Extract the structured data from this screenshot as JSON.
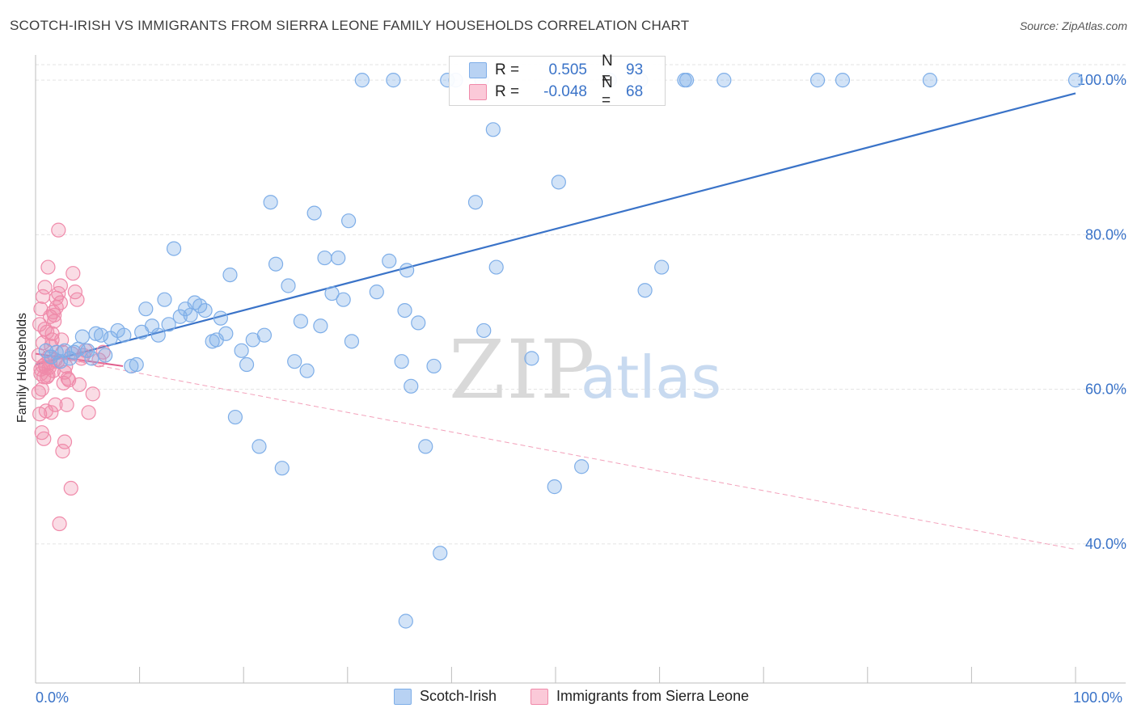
{
  "header": {
    "title": "SCOTCH-IRISH VS IMMIGRANTS FROM SIERRA LEONE FAMILY HOUSEHOLDS CORRELATION CHART",
    "source": "Source: ZipAtlas.com"
  },
  "watermark": {
    "zip": "ZIP",
    "atlas": "atlas"
  },
  "legend_top": {
    "rows": [
      {
        "r_label": "R =",
        "r_value": "0.505",
        "n_label": "N =",
        "n_value": "93",
        "color": "#7eaee8",
        "fill": "#b8d2f3"
      },
      {
        "r_label": "R =",
        "r_value": "-0.048",
        "n_label": "N =",
        "n_value": "68",
        "color": "#f08aaa",
        "fill": "#fbc9d8"
      }
    ]
  },
  "legend_bottom": {
    "items": [
      {
        "label": "Scotch-Irish",
        "color": "#7eaee8",
        "fill": "#b8d2f3"
      },
      {
        "label": "Immigrants from Sierra Leone",
        "color": "#f08aaa",
        "fill": "#fbc9d8"
      }
    ]
  },
  "x_axis": {
    "min_label": "0.0%",
    "max_label": "100.0%"
  },
  "chart_data": {
    "type": "scatter",
    "title": "SCOTCH-IRISH VS IMMIGRANTS FROM SIERRA LEONE FAMILY HOUSEHOLDS CORRELATION CHART",
    "xlabel": "",
    "ylabel": "Family Households",
    "xlim": [
      0,
      100
    ],
    "ylim": [
      22,
      102
    ],
    "y_ticks": [
      40,
      60,
      80,
      100
    ],
    "y_tick_labels": [
      "40.0%",
      "60.0%",
      "80.0%",
      "100.0%"
    ],
    "x_tick_values": [
      0,
      10,
      20,
      30,
      40,
      50,
      60,
      70,
      80,
      90,
      100
    ],
    "x_tick_labels": [
      "0.0%",
      "100.0%"
    ],
    "grid": true,
    "legend": "bottom-center",
    "series": [
      {
        "name": "Scotch-Irish",
        "color": "#3a73c8",
        "marker_fill": "rgba(126,174,232,0.35)",
        "marker_stroke": "#7eaee8",
        "trend": {
          "x": [
            0,
            100
          ],
          "y": [
            63.2,
            98.3
          ],
          "style": "solid"
        },
        "points": [
          [
            1.0,
            65.0
          ],
          [
            1.5,
            64.2
          ],
          [
            2.0,
            64.8
          ],
          [
            2.4,
            63.6
          ],
          [
            2.8,
            65.0
          ],
          [
            3.3,
            64.0
          ],
          [
            3.7,
            64.8
          ],
          [
            4.1,
            65.2
          ],
          [
            4.5,
            66.8
          ],
          [
            5.0,
            65.0
          ],
          [
            5.4,
            64.0
          ],
          [
            5.8,
            67.2
          ],
          [
            6.3,
            67.0
          ],
          [
            6.7,
            64.4
          ],
          [
            7.2,
            66.6
          ],
          [
            7.9,
            67.6
          ],
          [
            8.5,
            67.0
          ],
          [
            9.2,
            63.0
          ],
          [
            9.7,
            63.2
          ],
          [
            10.2,
            67.4
          ],
          [
            10.6,
            70.4
          ],
          [
            11.2,
            68.2
          ],
          [
            11.8,
            67.0
          ],
          [
            12.4,
            71.6
          ],
          [
            12.8,
            68.4
          ],
          [
            13.3,
            78.2
          ],
          [
            13.9,
            69.4
          ],
          [
            14.4,
            70.4
          ],
          [
            14.9,
            69.6
          ],
          [
            15.3,
            71.2
          ],
          [
            15.8,
            70.8
          ],
          [
            16.3,
            70.2
          ],
          [
            17.0,
            66.2
          ],
          [
            17.4,
            66.4
          ],
          [
            17.8,
            69.2
          ],
          [
            18.3,
            67.2
          ],
          [
            18.7,
            74.8
          ],
          [
            19.2,
            56.4
          ],
          [
            19.8,
            65.0
          ],
          [
            20.3,
            63.2
          ],
          [
            20.9,
            66.4
          ],
          [
            21.5,
            52.6
          ],
          [
            22.0,
            67.0
          ],
          [
            22.6,
            84.2
          ],
          [
            23.1,
            76.2
          ],
          [
            23.7,
            49.8
          ],
          [
            24.3,
            73.4
          ],
          [
            24.9,
            63.6
          ],
          [
            25.5,
            68.8
          ],
          [
            26.1,
            62.4
          ],
          [
            26.8,
            82.8
          ],
          [
            27.4,
            68.2
          ],
          [
            27.8,
            77.0
          ],
          [
            28.5,
            72.4
          ],
          [
            29.1,
            77.0
          ],
          [
            29.6,
            71.6
          ],
          [
            30.1,
            81.8
          ],
          [
            30.4,
            66.2
          ],
          [
            31.4,
            100
          ],
          [
            34.4,
            100
          ],
          [
            32.8,
            72.6
          ],
          [
            34.0,
            76.6
          ],
          [
            35.2,
            63.6
          ],
          [
            35.7,
            75.4
          ],
          [
            35.5,
            70.2
          ],
          [
            36.1,
            60.4
          ],
          [
            36.8,
            68.6
          ],
          [
            37.5,
            52.6
          ],
          [
            38.3,
            63.0
          ],
          [
            38.9,
            38.8
          ],
          [
            39.6,
            100
          ],
          [
            40.4,
            100
          ],
          [
            42.9,
            100
          ],
          [
            42.3,
            84.2
          ],
          [
            43.1,
            67.6
          ],
          [
            44.0,
            93.6
          ],
          [
            44.3,
            75.8
          ],
          [
            47.7,
            64.0
          ],
          [
            49.9,
            47.4
          ],
          [
            50.3,
            86.8
          ],
          [
            52.5,
            50.0
          ],
          [
            55.2,
            100
          ],
          [
            58.2,
            100
          ],
          [
            58.6,
            72.8
          ],
          [
            60.2,
            75.8
          ],
          [
            62.4,
            100
          ],
          [
            62.6,
            100
          ],
          [
            66.2,
            100
          ],
          [
            75.2,
            100
          ],
          [
            77.6,
            100
          ],
          [
            86.0,
            100
          ],
          [
            100,
            100
          ],
          [
            35.6,
            30.0
          ]
        ]
      },
      {
        "name": "Immigrants from Sierra Leone",
        "color": "#e05a8a",
        "marker_fill": "rgba(240,138,170,0.30)",
        "marker_stroke": "#f08aaa",
        "trend": {
          "x": [
            0,
            8.4
          ],
          "y": [
            64.6,
            63.0
          ],
          "style": "solid",
          "extended": {
            "x": [
              0,
              100
            ],
            "y": [
              64.6,
              39.3
            ],
            "style": "dashed"
          }
        },
        "points": [
          [
            0.3,
            64.4
          ],
          [
            0.5,
            62.6
          ],
          [
            0.7,
            66.0
          ],
          [
            0.9,
            63.2
          ],
          [
            1.1,
            67.4
          ],
          [
            0.4,
            68.4
          ],
          [
            0.6,
            60.0
          ],
          [
            0.8,
            61.6
          ],
          [
            1.0,
            62.8
          ],
          [
            1.3,
            64.2
          ],
          [
            1.5,
            65.6
          ],
          [
            1.7,
            62.4
          ],
          [
            1.9,
            63.8
          ],
          [
            0.5,
            70.4
          ],
          [
            0.7,
            72.0
          ],
          [
            0.9,
            73.2
          ],
          [
            1.2,
            75.8
          ],
          [
            1.4,
            69.4
          ],
          [
            1.6,
            66.4
          ],
          [
            1.8,
            68.8
          ],
          [
            2.0,
            70.6
          ],
          [
            2.2,
            72.4
          ],
          [
            2.4,
            71.2
          ],
          [
            2.6,
            64.8
          ],
          [
            2.8,
            62.2
          ],
          [
            0.4,
            56.8
          ],
          [
            0.6,
            54.4
          ],
          [
            0.8,
            53.6
          ],
          [
            1.0,
            57.2
          ],
          [
            1.2,
            61.8
          ],
          [
            1.4,
            63.4
          ],
          [
            1.6,
            67.2
          ],
          [
            1.8,
            69.6
          ],
          [
            2.0,
            71.8
          ],
          [
            2.2,
            80.6
          ],
          [
            2.4,
            73.4
          ],
          [
            2.6,
            52.0
          ],
          [
            2.8,
            53.2
          ],
          [
            3.0,
            58.0
          ],
          [
            3.2,
            61.2
          ],
          [
            3.4,
            47.2
          ],
          [
            3.6,
            75.0
          ],
          [
            3.8,
            72.6
          ],
          [
            4.0,
            71.6
          ],
          [
            4.2,
            60.6
          ],
          [
            4.4,
            64.0
          ],
          [
            4.6,
            64.4
          ],
          [
            4.8,
            65.0
          ],
          [
            5.1,
            57.0
          ],
          [
            5.5,
            59.4
          ],
          [
            6.1,
            63.8
          ],
          [
            6.5,
            64.8
          ],
          [
            2.3,
            42.6
          ],
          [
            1.9,
            58.0
          ],
          [
            1.5,
            57.0
          ],
          [
            0.3,
            59.6
          ],
          [
            0.5,
            62.0
          ],
          [
            0.7,
            63.0
          ],
          [
            1.1,
            61.6
          ],
          [
            1.3,
            62.8
          ],
          [
            2.1,
            63.6
          ],
          [
            2.5,
            66.4
          ],
          [
            2.7,
            60.8
          ],
          [
            3.1,
            61.4
          ],
          [
            3.5,
            64.6
          ],
          [
            1.7,
            70.0
          ],
          [
            0.9,
            67.8
          ],
          [
            2.9,
            63.0
          ]
        ]
      }
    ]
  }
}
